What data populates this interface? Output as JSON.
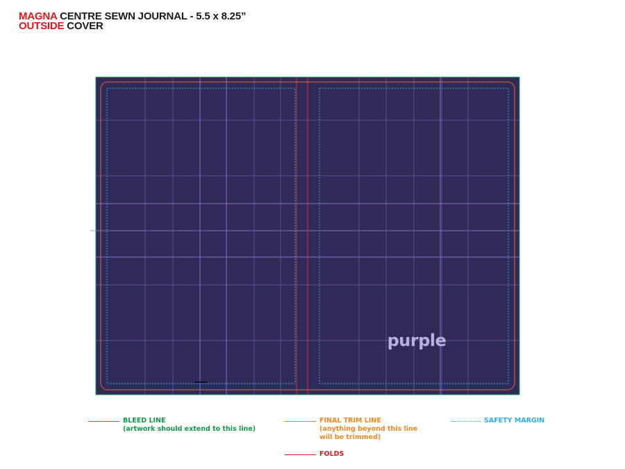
{
  "title": {
    "line1_brand": "MAGNA",
    "line1_rest": "CENTRE SEWN JOURNAL - 5.5 x 8.25”",
    "line2_side": "OUTSIDE",
    "line2_rest": "COVER"
  },
  "cover": {
    "logo_text": "purple",
    "background_color": "#302a59",
    "logo_color": "#b9b1db"
  },
  "legend": {
    "bleed": {
      "label": "BLEED LINE",
      "note": "(artwork should extend to this line)",
      "color": "#0f9a48"
    },
    "trim": {
      "label": "FINAL TRIM LINE",
      "note_line1": "(anything beyond this line",
      "note_line2": "will be trimmed)",
      "color": "#f7861f"
    },
    "folds": {
      "label": "FOLDS",
      "color": "#e3151b"
    },
    "safety": {
      "label": "SAFETY MARGIN",
      "color": "#2fb0e4"
    }
  }
}
